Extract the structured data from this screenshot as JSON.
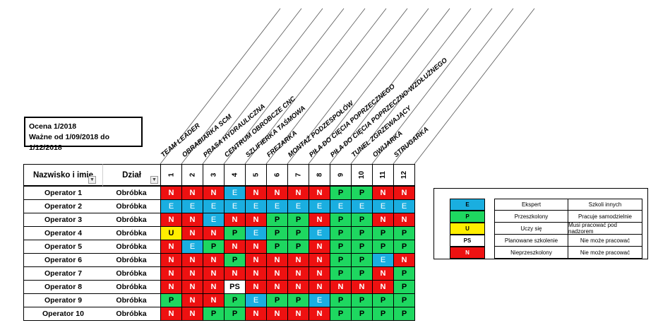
{
  "info": {
    "line1": "Ocena 1/2018",
    "line2": "Ważne od 1/09/2018 do 1/12/2018"
  },
  "header": {
    "name": "Nazwisko i imię",
    "dept": "Dział"
  },
  "columns": [
    {
      "num": "1",
      "label": "TEAM LEADER"
    },
    {
      "num": "2",
      "label": "OBRABIARKA SCM"
    },
    {
      "num": "3",
      "label": "PRASA HYDRAULICZNA"
    },
    {
      "num": "4",
      "label": "CENTRUM OBROBCZE CNC"
    },
    {
      "num": "5",
      "label": "SZLIFIERKA TAŚMOWA"
    },
    {
      "num": "6",
      "label": "FREZARKA"
    },
    {
      "num": "7",
      "label": "MONTAŻ PODZESPOŁÓW"
    },
    {
      "num": "8",
      "label": "PIŁA DO CIĘCIA POPRZECZNEGO"
    },
    {
      "num": "9",
      "label": "PIŁA DO CIĘCIA POPRZECZNO-WZDŁUŻNEGO"
    },
    {
      "num": "10",
      "label": "TUNEL ZGRZEWAJĄCY"
    },
    {
      "num": "11",
      "label": "OWIJARKA"
    },
    {
      "num": "12",
      "label": "STRUGARKA"
    }
  ],
  "colors": {
    "N": "#ee1111",
    "E": "#1aaee0",
    "P": "#1ed760",
    "U": "#ffee00",
    "PS": "#ffffff"
  },
  "rows": [
    {
      "name": "Operator 1",
      "dept": "Obróbka",
      "cells": [
        "N",
        "N",
        "N",
        "E",
        "N",
        "N",
        "N",
        "N",
        "P",
        "P",
        "N",
        "N"
      ]
    },
    {
      "name": "Operator 2",
      "dept": "Obróbka",
      "cells": [
        "E",
        "E",
        "E",
        "E",
        "E",
        "E",
        "E",
        "E",
        "E",
        "E",
        "E",
        "E"
      ]
    },
    {
      "name": "Operator 3",
      "dept": "Obróbka",
      "cells": [
        "N",
        "N",
        "E",
        "N",
        "N",
        "P",
        "P",
        "N",
        "P",
        "P",
        "N",
        "N"
      ]
    },
    {
      "name": "Operator 4",
      "dept": "Obróbka",
      "cells": [
        "U",
        "N",
        "N",
        "P",
        "E",
        "P",
        "P",
        "E",
        "P",
        "P",
        "P",
        "P"
      ]
    },
    {
      "name": "Operator 5",
      "dept": "Obróbka",
      "cells": [
        "N",
        "E",
        "P",
        "N",
        "N",
        "P",
        "P",
        "N",
        "P",
        "P",
        "P",
        "P"
      ]
    },
    {
      "name": "Operator 6",
      "dept": "Obróbka",
      "cells": [
        "N",
        "N",
        "N",
        "P",
        "N",
        "N",
        "N",
        "N",
        "P",
        "P",
        "E",
        "N"
      ]
    },
    {
      "name": "Operator 7",
      "dept": "Obróbka",
      "cells": [
        "N",
        "N",
        "N",
        "N",
        "N",
        "N",
        "N",
        "N",
        "P",
        "P",
        "N",
        "P"
      ]
    },
    {
      "name": "Operator 8",
      "dept": "Obróbka",
      "cells": [
        "N",
        "N",
        "N",
        "PS",
        "N",
        "N",
        "N",
        "N",
        "N",
        "N",
        "N",
        "P"
      ]
    },
    {
      "name": "Operator 9",
      "dept": "Obróbka",
      "cells": [
        "P",
        "N",
        "N",
        "P",
        "E",
        "P",
        "P",
        "E",
        "P",
        "P",
        "P",
        "P"
      ]
    },
    {
      "name": "Operator 10",
      "dept": "Obróbka",
      "cells": [
        "N",
        "N",
        "P",
        "P",
        "N",
        "N",
        "N",
        "N",
        "P",
        "P",
        "P",
        "P"
      ]
    }
  ],
  "legend": [
    {
      "code": "E",
      "desc": "Ekspert",
      "note": "Szkoli innych"
    },
    {
      "code": "P",
      "desc": "Przeszkolony",
      "note": "Pracuje samodzielnie"
    },
    {
      "code": "U",
      "desc": "Uczy się",
      "note": "Musi pracować pod nadzorem"
    },
    {
      "code": "PS",
      "desc": "Planowane szkolenie",
      "note": "Nie może pracować"
    },
    {
      "code": "N",
      "desc": "Nieprzeszkolony",
      "note": "Nie może pracować"
    }
  ]
}
